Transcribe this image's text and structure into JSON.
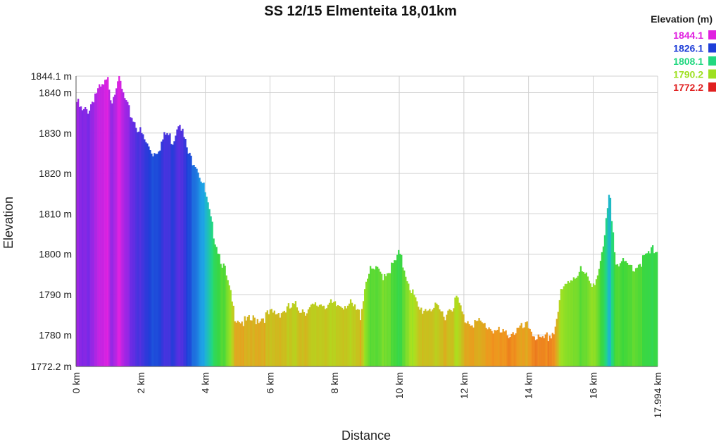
{
  "chart_data": {
    "type": "area",
    "title": "SS 12/15 Elmenteita 18,01km",
    "xlabel": "Distance",
    "ylabel": "Elevation",
    "xlim": [
      0,
      17.994
    ],
    "ylim": [
      1772.2,
      1844.1
    ],
    "x_ticks": [
      {
        "value": 0,
        "label": "0 km"
      },
      {
        "value": 2,
        "label": "2 km"
      },
      {
        "value": 4,
        "label": "4 km"
      },
      {
        "value": 6,
        "label": "6 km"
      },
      {
        "value": 8,
        "label": "8 km"
      },
      {
        "value": 10,
        "label": "10 km"
      },
      {
        "value": 12,
        "label": "12 km"
      },
      {
        "value": 14,
        "label": "14 km"
      },
      {
        "value": 16,
        "label": "16 km"
      },
      {
        "value": 17.994,
        "label": "17.994 km"
      }
    ],
    "y_ticks": [
      {
        "value": 1772.2,
        "label": "1772.2 m"
      },
      {
        "value": 1780,
        "label": "1780 m"
      },
      {
        "value": 1790,
        "label": "1790 m"
      },
      {
        "value": 1800,
        "label": "1800 m"
      },
      {
        "value": 1810,
        "label": "1810 m"
      },
      {
        "value": 1820,
        "label": "1820 m"
      },
      {
        "value": 1830,
        "label": "1830 m"
      },
      {
        "value": 1840,
        "label": "1840 m"
      },
      {
        "value": 1844.1,
        "label": "1844.1 m"
      }
    ],
    "grid": true,
    "legend": {
      "title": "Elevation (m)",
      "placement": "top-right",
      "items": [
        {
          "label": "1844.1",
          "color": "#e020e0"
        },
        {
          "label": "1826.1",
          "color": "#1e3ed8"
        },
        {
          "label": "1808.1",
          "color": "#22d880"
        },
        {
          "label": "1790.2",
          "color": "#9ee021"
        },
        {
          "label": "1772.2",
          "color": "#e02020"
        }
      ]
    },
    "series": [
      {
        "x": [
          0.0,
          0.2,
          0.4,
          0.6,
          0.8,
          1.0,
          1.1,
          1.3,
          1.4,
          1.6,
          1.8,
          2.0,
          2.2,
          2.4,
          2.6,
          2.8,
          3.0,
          3.2,
          3.3,
          3.5,
          3.7,
          3.9,
          4.0,
          4.2,
          4.4,
          4.6,
          4.8,
          4.9,
          5.2,
          5.6,
          6.0,
          6.4,
          6.8,
          7.2,
          7.6,
          8.0,
          8.4,
          8.8,
          9.0,
          9.2,
          9.5,
          9.8,
          10.0,
          10.3,
          10.6,
          11.0,
          11.4,
          11.8,
          12.0,
          12.4,
          12.8,
          13.2,
          13.6,
          14.0,
          14.4,
          14.8,
          15.0,
          15.3,
          15.6,
          15.9,
          16.1,
          16.3,
          16.5,
          16.7,
          17.0,
          17.3,
          17.6,
          17.994
        ],
        "y": [
          1838,
          1835,
          1836,
          1840,
          1841,
          1843,
          1838,
          1844.1,
          1841,
          1836,
          1833,
          1830,
          1827,
          1825,
          1827,
          1830,
          1828,
          1834,
          1830,
          1824,
          1823,
          1818,
          1815,
          1807,
          1801,
          1796,
          1789,
          1785,
          1783,
          1784,
          1785,
          1786,
          1787,
          1786,
          1788,
          1787,
          1788,
          1785,
          1795,
          1796,
          1795,
          1797,
          1800,
          1793,
          1786,
          1787,
          1785,
          1789,
          1784,
          1783,
          1782,
          1780,
          1781,
          1782,
          1778,
          1781,
          1790,
          1794,
          1796,
          1793,
          1794,
          1800,
          1815,
          1799,
          1797,
          1797,
          1799,
          1802
        ]
      }
    ]
  }
}
